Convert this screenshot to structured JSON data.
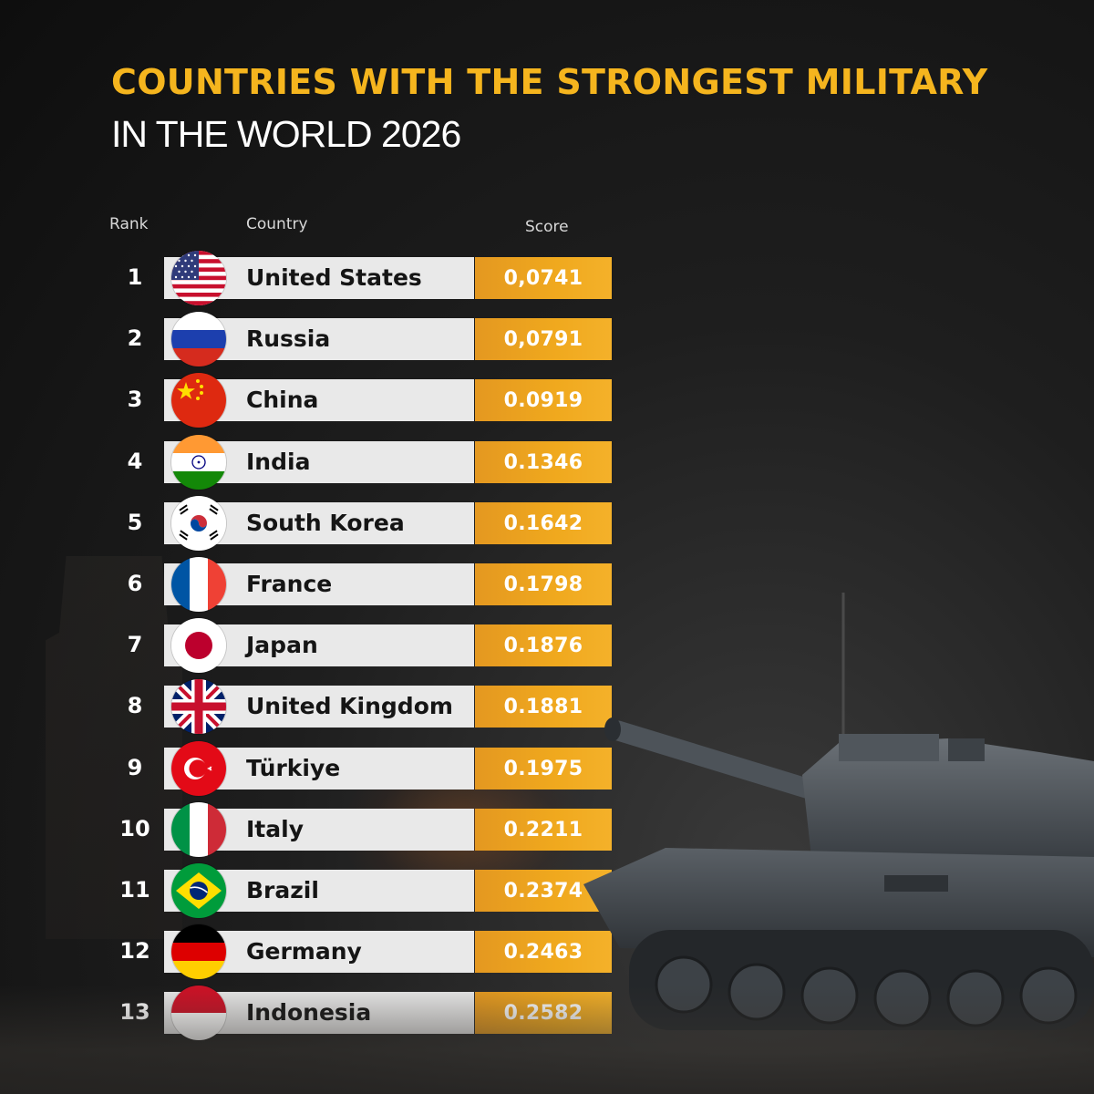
{
  "title": {
    "line1": "COUNTRIES WITH THE STRONGEST MILITARY",
    "line2": "IN THE WORLD 2026"
  },
  "headers": {
    "rank": "Rank",
    "country": "Country",
    "score": "Score"
  },
  "rows": [
    {
      "rank": "1",
      "country": "United States",
      "score": "0,0741",
      "flag": "us-flag-icon"
    },
    {
      "rank": "2",
      "country": "Russia",
      "score": "0,0791",
      "flag": "russia-flag-icon"
    },
    {
      "rank": "3",
      "country": "China",
      "score": "0.0919",
      "flag": "china-flag-icon"
    },
    {
      "rank": "4",
      "country": "India",
      "score": "0.1346",
      "flag": "india-flag-icon"
    },
    {
      "rank": "5",
      "country": "South Korea",
      "score": "0.1642",
      "flag": "south-korea-flag-icon"
    },
    {
      "rank": "6",
      "country": "France",
      "score": "0.1798",
      "flag": "france-flag-icon"
    },
    {
      "rank": "7",
      "country": "Japan",
      "score": "0.1876",
      "flag": "japan-flag-icon"
    },
    {
      "rank": "8",
      "country": "United Kingdom",
      "score": "0.1881",
      "flag": "uk-flag-icon"
    },
    {
      "rank": "9",
      "country": "Türkiye",
      "score": "0.1975",
      "flag": "turkiye-flag-icon"
    },
    {
      "rank": "10",
      "country": "Italy",
      "score": "0.2211",
      "flag": "italy-flag-icon"
    },
    {
      "rank": "11",
      "country": "Brazil",
      "score": "0.2374",
      "flag": "brazil-flag-icon"
    },
    {
      "rank": "12",
      "country": "Germany",
      "score": "0.2463",
      "flag": "germany-flag-icon"
    },
    {
      "rank": "13",
      "country": "Indonesia",
      "score": "0.2582",
      "flag": "indonesia-flag-icon"
    }
  ],
  "colors": {
    "accent": "#f5b51e",
    "score_bar": "#f0a91e",
    "row_bar": "#e9e9e9",
    "background": "#141414"
  }
}
